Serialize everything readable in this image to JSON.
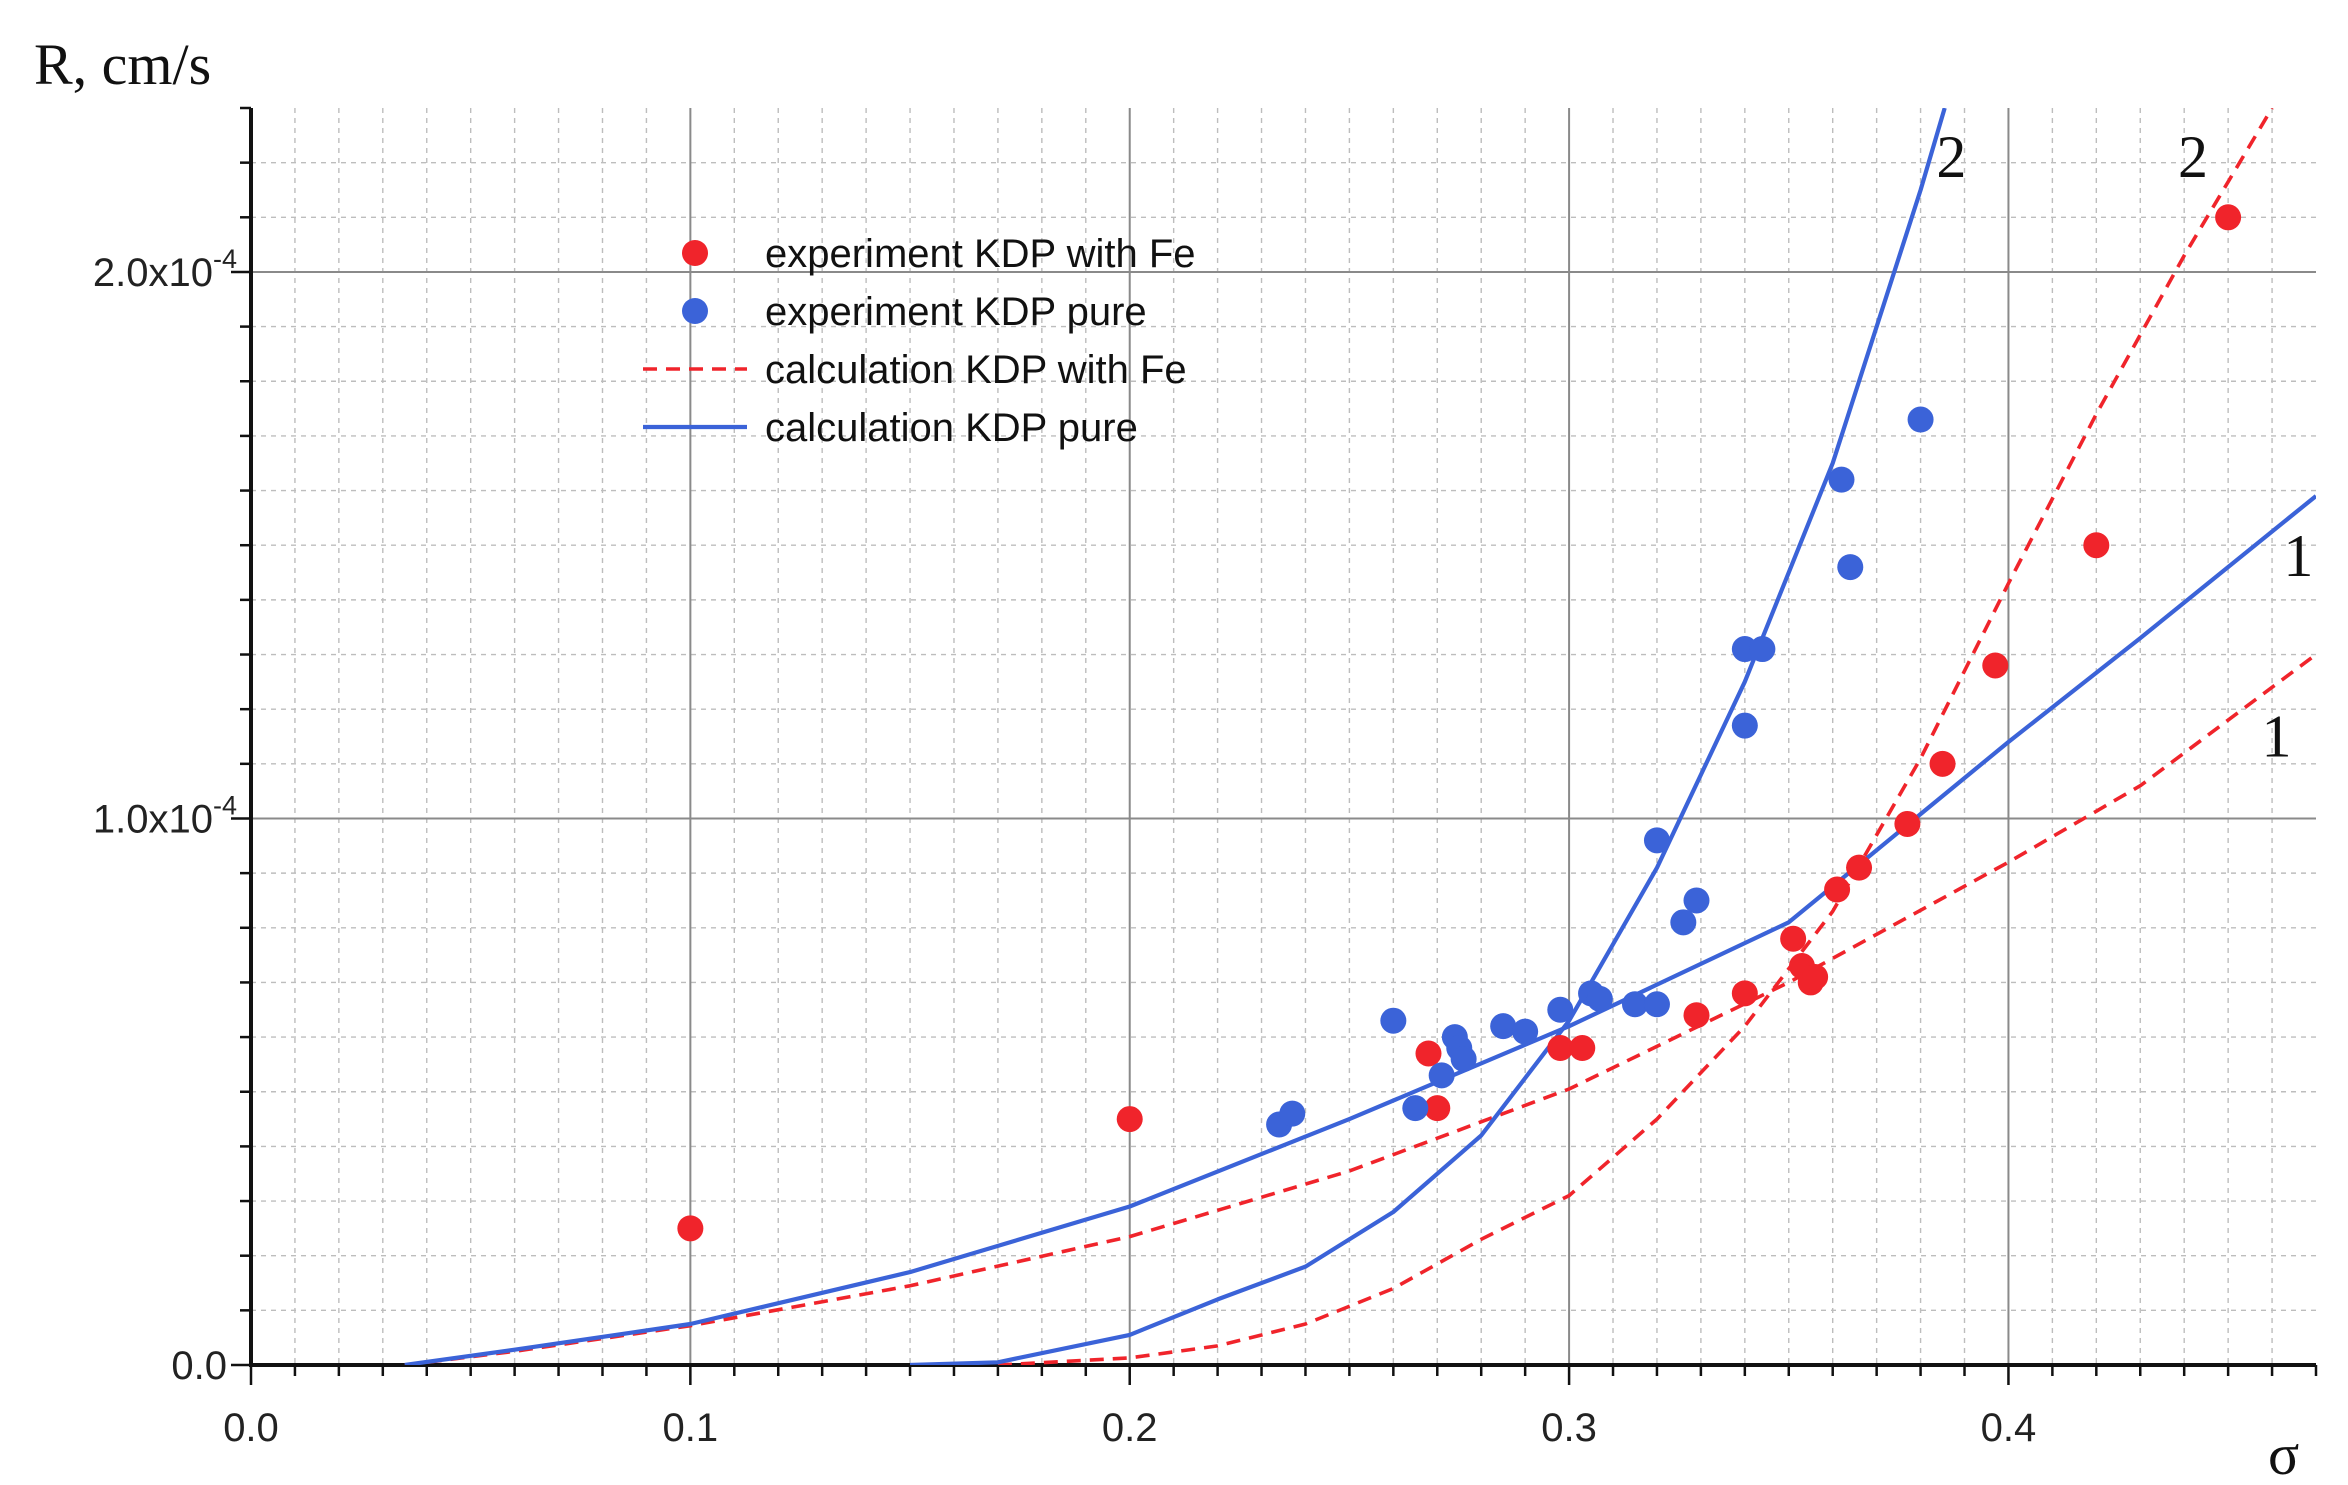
{
  "chart_data": {
    "type": "scatter",
    "title": "",
    "xlabel": "σ",
    "ylabel": "R, cm/s",
    "xlim": [
      0,
      0.47
    ],
    "ylim": [
      0,
      0.00023
    ],
    "grid": true,
    "legend_position": "top-center",
    "x_ticks": [
      {
        "value": 0.0,
        "label": "0.0"
      },
      {
        "value": 0.1,
        "label": "0.1"
      },
      {
        "value": 0.2,
        "label": "0.2"
      },
      {
        "value": 0.3,
        "label": "0.3"
      },
      {
        "value": 0.4,
        "label": "0.4"
      }
    ],
    "y_ticks": [
      {
        "value": 0.0,
        "label": "0.0"
      },
      {
        "value": 0.0001,
        "label": "1.0x10",
        "exp": "-4"
      },
      {
        "value": 0.0002,
        "label": "2.0x10",
        "exp": "-4"
      }
    ],
    "series": [
      {
        "name": "experiment KDP with Fe",
        "kind": "points",
        "color": "#f0242b",
        "points": [
          [
            0.1,
            2.5e-05
          ],
          [
            0.2,
            4.5e-05
          ],
          [
            0.268,
            5.7e-05
          ],
          [
            0.27,
            4.7e-05
          ],
          [
            0.298,
            5.8e-05
          ],
          [
            0.303,
            5.8e-05
          ],
          [
            0.329,
            6.4e-05
          ],
          [
            0.34,
            6.8e-05
          ],
          [
            0.351,
            7.8e-05
          ],
          [
            0.353,
            7.3e-05
          ],
          [
            0.355,
            7e-05
          ],
          [
            0.356,
            7.1e-05
          ],
          [
            0.361,
            8.7e-05
          ],
          [
            0.366,
            9.1e-05
          ],
          [
            0.377,
            9.9e-05
          ],
          [
            0.385,
            0.00011
          ],
          [
            0.397,
            0.000128
          ],
          [
            0.42,
            0.00015
          ],
          [
            0.45,
            0.00021
          ]
        ]
      },
      {
        "name": "experiment KDP pure",
        "kind": "points",
        "color": "#3b63d8",
        "points": [
          [
            0.234,
            4.4e-05
          ],
          [
            0.237,
            4.6e-05
          ],
          [
            0.26,
            6.3e-05
          ],
          [
            0.265,
            4.7e-05
          ],
          [
            0.271,
            5.3e-05
          ],
          [
            0.274,
            6e-05
          ],
          [
            0.275,
            5.8e-05
          ],
          [
            0.276,
            5.6e-05
          ],
          [
            0.285,
            6.2e-05
          ],
          [
            0.29,
            6.1e-05
          ],
          [
            0.298,
            6.5e-05
          ],
          [
            0.305,
            6.8e-05
          ],
          [
            0.307,
            6.7e-05
          ],
          [
            0.315,
            6.6e-05
          ],
          [
            0.32,
            6.6e-05
          ],
          [
            0.32,
            9.6e-05
          ],
          [
            0.326,
            8.1e-05
          ],
          [
            0.329,
            8.5e-05
          ],
          [
            0.34,
            0.000117
          ],
          [
            0.34,
            0.000131
          ],
          [
            0.344,
            0.000131
          ],
          [
            0.362,
            0.000162
          ],
          [
            0.364,
            0.000146
          ],
          [
            0.38,
            0.000173
          ]
        ]
      },
      {
        "name": "calculation KDP with Fe",
        "kind": "line",
        "style": "dashed",
        "color": "#f0242b",
        "curves": [
          {
            "label": "1",
            "label_at": [
              0.461,
              0.000115
            ],
            "points": [
              [
                0.035,
                0.0
              ],
              [
                0.06,
                2.5e-06
              ],
              [
                0.1,
                7.2e-06
              ],
              [
                0.15,
                1.45e-05
              ],
              [
                0.2,
                2.35e-05
              ],
              [
                0.25,
                3.55e-05
              ],
              [
                0.3,
                5.05e-05
              ],
              [
                0.35,
                7e-05
              ],
              [
                0.4,
                9.2e-05
              ],
              [
                0.43,
                0.000106
              ],
              [
                0.47,
                0.00013
              ]
            ]
          },
          {
            "label": "2",
            "label_at": [
              0.442,
              0.000221
            ],
            "points": [
              [
                0.17,
                0.0
              ],
              [
                0.2,
                1.3e-06
              ],
              [
                0.22,
                3.5e-06
              ],
              [
                0.24,
                7.5e-06
              ],
              [
                0.26,
                1.4e-05
              ],
              [
                0.28,
                2.3e-05
              ],
              [
                0.3,
                3.1e-05
              ],
              [
                0.32,
                4.5e-05
              ],
              [
                0.34,
                6.2e-05
              ],
              [
                0.36,
                8.3e-05
              ],
              [
                0.38,
                0.000111
              ],
              [
                0.4,
                0.000143
              ],
              [
                0.42,
                0.000174
              ],
              [
                0.44,
                0.000203
              ],
              [
                0.46,
                0.00023
              ]
            ]
          }
        ]
      },
      {
        "name": "calculation KDP pure",
        "kind": "line",
        "style": "solid",
        "color": "#3b63d8",
        "curves": [
          {
            "label": "1",
            "label_at": [
              0.466,
              0.000148
            ],
            "points": [
              [
                0.035,
                0.0
              ],
              [
                0.06,
                2.8e-06
              ],
              [
                0.1,
                7.5e-06
              ],
              [
                0.15,
                1.7e-05
              ],
              [
                0.2,
                2.9e-05
              ],
              [
                0.25,
                4.5e-05
              ],
              [
                0.3,
                6.2e-05
              ],
              [
                0.35,
                8.1e-05
              ],
              [
                0.4,
                0.000114
              ],
              [
                0.43,
                0.000133
              ],
              [
                0.47,
                0.000159
              ]
            ]
          },
          {
            "label": "2",
            "label_at": [
              0.387,
              0.000221
            ],
            "points": [
              [
                0.15,
                0.0
              ],
              [
                0.17,
                5e-07
              ],
              [
                0.2,
                5.5e-06
              ],
              [
                0.22,
                1.2e-05
              ],
              [
                0.24,
                1.8e-05
              ],
              [
                0.26,
                2.8e-05
              ],
              [
                0.28,
                4.2e-05
              ],
              [
                0.3,
                6.3e-05
              ],
              [
                0.32,
                9.1e-05
              ],
              [
                0.34,
                0.000125
              ],
              [
                0.36,
                0.000165
              ],
              [
                0.38,
                0.000215
              ],
              [
                0.3855,
                0.00023
              ]
            ]
          }
        ]
      }
    ]
  }
}
